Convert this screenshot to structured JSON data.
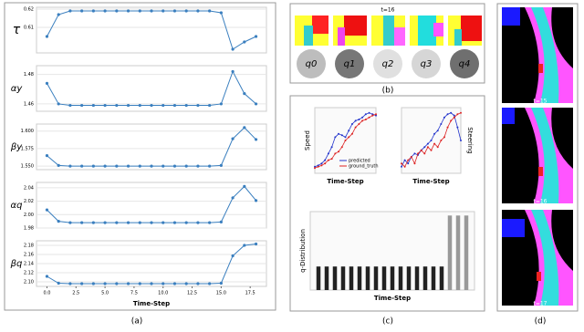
{
  "panel_labels": [
    "(a)",
    "(b)",
    "(c)",
    "(d)"
  ],
  "panel_b": {
    "title": "t=16",
    "q_labels": [
      "q0",
      "q1",
      "q2",
      "q3",
      "q4"
    ]
  },
  "panel_d": {
    "time_labels": [
      "t=15",
      "t=16",
      "t=17"
    ]
  },
  "chart_data": [
    {
      "type": "line",
      "y_label": "τ",
      "x": [
        0,
        1,
        2,
        3,
        4,
        5,
        6,
        7,
        8,
        9,
        10,
        11,
        12,
        13,
        14,
        15,
        16,
        17,
        18
      ],
      "series": [
        {
          "color": "#3a7fbf",
          "values": [
            0.605,
            0.617,
            0.619,
            0.619,
            0.619,
            0.619,
            0.619,
            0.619,
            0.619,
            0.619,
            0.619,
            0.619,
            0.619,
            0.619,
            0.619,
            0.618,
            0.598,
            0.602,
            0.605
          ]
        }
      ],
      "xlim": [
        -0.9,
        18.9
      ],
      "ylim": [
        0.596,
        0.621
      ],
      "yticks": [
        0.61,
        0.62
      ],
      "grid": true
    },
    {
      "type": "line",
      "y_label": "αy",
      "x": [
        0,
        1,
        2,
        3,
        4,
        5,
        6,
        7,
        8,
        9,
        10,
        11,
        12,
        13,
        14,
        15,
        16,
        17,
        18
      ],
      "series": [
        {
          "color": "#3a7fbf",
          "values": [
            1.474,
            1.46,
            1.459,
            1.459,
            1.459,
            1.459,
            1.459,
            1.459,
            1.459,
            1.459,
            1.459,
            1.459,
            1.459,
            1.459,
            1.459,
            1.46,
            1.482,
            1.467,
            1.46
          ]
        }
      ],
      "xlim": [
        -0.9,
        18.9
      ],
      "ylim": [
        1.455,
        1.486
      ],
      "yticks": [
        1.46,
        1.48
      ],
      "grid": true
    },
    {
      "type": "line",
      "y_label": "βy",
      "x": [
        0,
        1,
        2,
        3,
        4,
        5,
        6,
        7,
        8,
        9,
        10,
        11,
        12,
        13,
        14,
        15,
        16,
        17,
        18
      ],
      "series": [
        {
          "color": "#3a7fbf",
          "values": [
            1.565,
            1.551,
            1.55,
            1.55,
            1.55,
            1.55,
            1.55,
            1.55,
            1.55,
            1.55,
            1.55,
            1.55,
            1.55,
            1.55,
            1.55,
            1.551,
            1.589,
            1.605,
            1.588
          ]
        }
      ],
      "xlim": [
        -0.9,
        18.9
      ],
      "ylim": [
        1.545,
        1.61
      ],
      "yticks": [
        {
          "value": 1.55,
          "label": "1.550"
        },
        1.575,
        {
          "value": 1.6,
          "label": "1.600"
        }
      ],
      "grid": true
    },
    {
      "type": "line",
      "y_label": "αq",
      "x": [
        0,
        1,
        2,
        3,
        4,
        5,
        6,
        7,
        8,
        9,
        10,
        11,
        12,
        13,
        14,
        15,
        16,
        17,
        18
      ],
      "series": [
        {
          "color": "#3a7fbf",
          "values": [
            2.007,
            1.99,
            1.988,
            1.988,
            1.988,
            1.988,
            1.988,
            1.988,
            1.988,
            1.988,
            1.988,
            1.988,
            1.988,
            1.988,
            1.988,
            1.989,
            2.025,
            2.042,
            2.021
          ]
        }
      ],
      "xlim": [
        -0.9,
        18.9
      ],
      "ylim": [
        1.98,
        2.048
      ],
      "yticks": [
        {
          "value": 1.98,
          "label": "1.98"
        },
        {
          "value": 2.0,
          "label": "2.00"
        },
        2.02,
        2.04
      ],
      "grid": true
    },
    {
      "type": "line",
      "y_label": "βq",
      "x_label": "Time-Step",
      "x": [
        0,
        1,
        2,
        3,
        4,
        5,
        6,
        7,
        8,
        9,
        10,
        11,
        12,
        13,
        14,
        15,
        16,
        17,
        18
      ],
      "series": [
        {
          "color": "#3a7fbf",
          "values": [
            2.112,
            2.097,
            2.096,
            2.096,
            2.096,
            2.096,
            2.096,
            2.096,
            2.096,
            2.096,
            2.096,
            2.096,
            2.096,
            2.096,
            2.096,
            2.097,
            2.157,
            2.18,
            2.183
          ]
        }
      ],
      "xlim": [
        -0.9,
        18.9
      ],
      "ylim": [
        2.09,
        2.19
      ],
      "yticks": [
        {
          "value": 2.1,
          "label": "2.10"
        },
        2.12,
        2.14,
        2.16,
        2.18
      ],
      "xticks": [
        {
          "value": 0,
          "label": "0.0"
        },
        2.5,
        {
          "value": 5,
          "label": "5.0"
        },
        7.5,
        {
          "value": 10,
          "label": "10.0"
        },
        12.5,
        {
          "value": 15,
          "label": "15.0"
        },
        17.5
      ],
      "grid": true
    },
    {
      "type": "line",
      "y_label": "Speed",
      "x_label": "Time-Step",
      "x": [
        0,
        1,
        2,
        3,
        4,
        5,
        6,
        7,
        8,
        9,
        10,
        11,
        12,
        13,
        14,
        15,
        16,
        17,
        18
      ],
      "series": [
        {
          "name": "predicted",
          "color": "#2233cc",
          "values": [
            0.1,
            0.12,
            0.15,
            0.2,
            0.3,
            0.4,
            0.55,
            0.6,
            0.58,
            0.55,
            0.65,
            0.75,
            0.8,
            0.82,
            0.85,
            0.9,
            0.92,
            0.9,
            0.88
          ]
        },
        {
          "name": "ground_truth",
          "color": "#dd2222",
          "values": [
            0.08,
            0.1,
            0.12,
            0.15,
            0.2,
            0.22,
            0.3,
            0.33,
            0.4,
            0.5,
            0.55,
            0.6,
            0.7,
            0.75,
            0.8,
            0.82,
            0.85,
            0.88,
            0.9
          ]
        }
      ],
      "xlim": [
        0,
        18
      ],
      "ylim": [
        0,
        1
      ],
      "legend": "lower-right"
    },
    {
      "type": "line",
      "y_label": "Steering",
      "x_label": "Time-Step",
      "x": [
        0,
        1,
        2,
        3,
        4,
        5,
        6,
        7,
        8,
        9,
        10,
        11,
        12,
        13,
        14,
        15,
        16,
        17,
        18
      ],
      "series": [
        {
          "color": "#2233cc",
          "values": [
            0.1,
            0.2,
            0.15,
            0.25,
            0.3,
            0.28,
            0.35,
            0.4,
            0.45,
            0.5,
            0.6,
            0.65,
            0.75,
            0.85,
            0.9,
            0.92,
            0.88,
            0.7,
            0.5
          ]
        },
        {
          "color": "#dd2222",
          "values": [
            0.15,
            0.1,
            0.2,
            0.25,
            0.15,
            0.3,
            0.35,
            0.3,
            0.4,
            0.35,
            0.45,
            0.4,
            0.5,
            0.55,
            0.7,
            0.8,
            0.85,
            0.9,
            0.92
          ]
        }
      ],
      "xlim": [
        0,
        18
      ],
      "ylim": [
        0,
        1
      ]
    },
    {
      "type": "bar",
      "y_label": "q-Distribution",
      "x_label": "Time-Step",
      "x": [
        0,
        1,
        2,
        3,
        4,
        5,
        6,
        7,
        8,
        9,
        10,
        11,
        12,
        13,
        14,
        15,
        16,
        17,
        18
      ],
      "values": [
        0.3,
        0.3,
        0.3,
        0.3,
        0.3,
        0.3,
        0.3,
        0.3,
        0.3,
        0.3,
        0.3,
        0.3,
        0.3,
        0.3,
        0.3,
        0.3,
        0.95,
        0.95,
        0.95
      ],
      "color": "#222222",
      "xlim": [
        -1,
        19
      ],
      "ylim": [
        0,
        1
      ]
    }
  ]
}
